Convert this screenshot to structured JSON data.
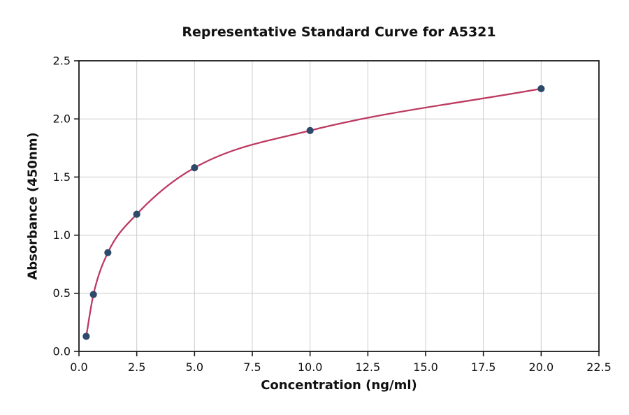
{
  "chart_data": {
    "type": "line",
    "title": "Representative Standard Curve for A5321",
    "xlabel": "Concentration (ng/ml)",
    "ylabel": "Absorbance (450nm)",
    "x": [
      0.313,
      0.625,
      1.25,
      2.5,
      5,
      10,
      20
    ],
    "y": [
      0.13,
      0.49,
      0.85,
      1.18,
      1.58,
      1.9,
      2.26
    ],
    "xlim": [
      0,
      22.5
    ],
    "ylim": [
      0,
      2.5
    ],
    "x_ticks": [
      0,
      2.5,
      5,
      7.5,
      10,
      12.5,
      15,
      17.5,
      20,
      22.5
    ],
    "x_tick_labels": [
      "0.0",
      "2.5",
      "5.0",
      "7.5",
      "10.0",
      "12.5",
      "15.0",
      "17.5",
      "20.0",
      "22.5"
    ],
    "y_ticks": [
      0,
      0.5,
      1,
      1.5,
      2,
      2.5
    ],
    "y_tick_labels": [
      "0.0",
      "0.5",
      "1.0",
      "1.5",
      "2.0",
      "2.5"
    ],
    "grid": true,
    "legend": "none",
    "colors": {
      "line": "#bd3a62",
      "marker": "#2e4a6b",
      "grid": "#cccccc",
      "spine": "#1a1a1a",
      "tick_label": "#111111",
      "background": "#ffffff"
    }
  }
}
